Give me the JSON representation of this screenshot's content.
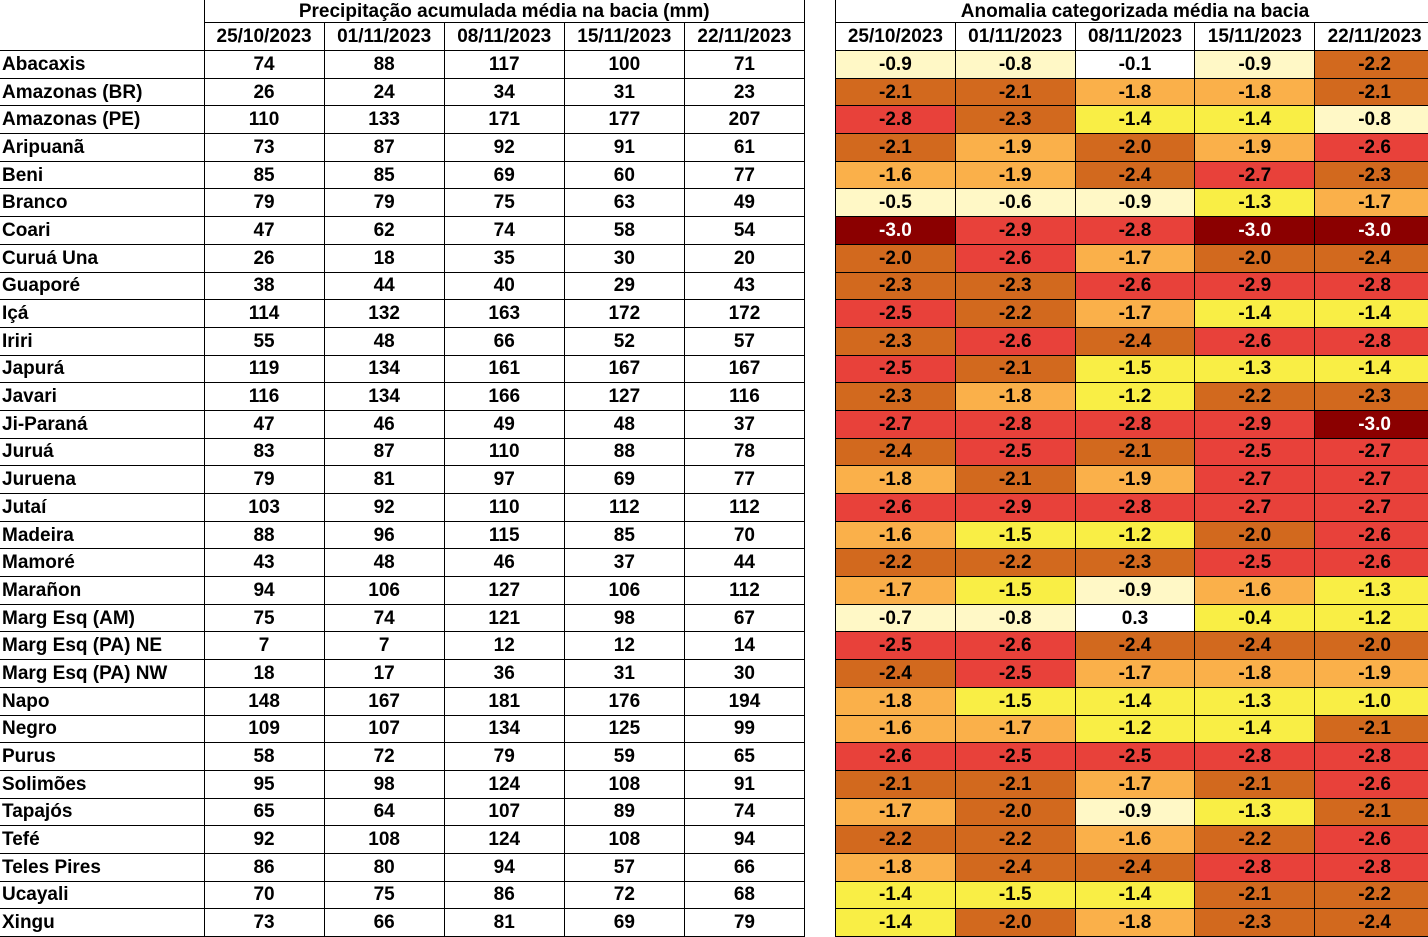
{
  "left_title": "Precipitação acumulada média na bacia (mm)",
  "right_title": "Anomalia categorizada média na bacia",
  "dates": [
    "25/10/2023",
    "01/11/2023",
    "08/11/2023",
    "15/11/2023",
    "22/11/2023"
  ],
  "colors": {
    "neg3": "#8b0000",
    "red": "#e8413a",
    "dark_orange": "#d2691e",
    "light_orange": "#fab04a",
    "yellow": "#f9ee45",
    "pale_yellow": "#fff8c6",
    "white": "#ffffff"
  },
  "rows": [
    {
      "basin": "Abacaxis",
      "precip": [
        "74",
        "88",
        "117",
        "100",
        "71"
      ],
      "anomaly": [
        "-0.9",
        "-0.8",
        "-0.1",
        "-0.9",
        "-2.2"
      ]
    },
    {
      "basin": "Amazonas (BR)",
      "precip": [
        "26",
        "24",
        "34",
        "31",
        "23"
      ],
      "anomaly": [
        "-2.1",
        "-2.1",
        "-1.8",
        "-1.8",
        "-2.1"
      ]
    },
    {
      "basin": "Amazonas (PE)",
      "precip": [
        "110",
        "133",
        "171",
        "177",
        "207"
      ],
      "anomaly": [
        "-2.8",
        "-2.3",
        "-1.4",
        "-1.4",
        "-0.8"
      ]
    },
    {
      "basin": "Aripuanã",
      "precip": [
        "73",
        "87",
        "92",
        "91",
        "61"
      ],
      "anomaly": [
        "-2.1",
        "-1.9",
        "-2.0",
        "-1.9",
        "-2.6"
      ]
    },
    {
      "basin": "Beni",
      "precip": [
        "85",
        "85",
        "69",
        "60",
        "77"
      ],
      "anomaly": [
        "-1.6",
        "-1.9",
        "-2.4",
        "-2.7",
        "-2.3"
      ]
    },
    {
      "basin": "Branco",
      "precip": [
        "79",
        "79",
        "75",
        "63",
        "49"
      ],
      "anomaly": [
        "-0.5",
        "-0.6",
        "-0.9",
        "-1.3",
        "-1.7"
      ]
    },
    {
      "basin": "Coari",
      "precip": [
        "47",
        "62",
        "74",
        "58",
        "54"
      ],
      "anomaly": [
        "-3.0",
        "-2.9",
        "-2.8",
        "-3.0",
        "-3.0"
      ]
    },
    {
      "basin": "Curuá Una",
      "precip": [
        "26",
        "18",
        "35",
        "30",
        "20"
      ],
      "anomaly": [
        "-2.0",
        "-2.6",
        "-1.7",
        "-2.0",
        "-2.4"
      ]
    },
    {
      "basin": "Guaporé",
      "precip": [
        "38",
        "44",
        "40",
        "29",
        "43"
      ],
      "anomaly": [
        "-2.3",
        "-2.3",
        "-2.6",
        "-2.9",
        "-2.8"
      ]
    },
    {
      "basin": "Içá",
      "precip": [
        "114",
        "132",
        "163",
        "172",
        "172"
      ],
      "anomaly": [
        "-2.5",
        "-2.2",
        "-1.7",
        "-1.4",
        "-1.4"
      ]
    },
    {
      "basin": "Iriri",
      "precip": [
        "55",
        "48",
        "66",
        "52",
        "57"
      ],
      "anomaly": [
        "-2.3",
        "-2.6",
        "-2.4",
        "-2.6",
        "-2.8"
      ]
    },
    {
      "basin": "Japurá",
      "precip": [
        "119",
        "134",
        "161",
        "167",
        "167"
      ],
      "anomaly": [
        "-2.5",
        "-2.1",
        "-1.5",
        "-1.3",
        "-1.4"
      ]
    },
    {
      "basin": "Javari",
      "precip": [
        "116",
        "134",
        "166",
        "127",
        "116"
      ],
      "anomaly": [
        "-2.3",
        "-1.8",
        "-1.2",
        "-2.2",
        "-2.3"
      ]
    },
    {
      "basin": "Ji-Paraná",
      "precip": [
        "47",
        "46",
        "49",
        "48",
        "37"
      ],
      "anomaly": [
        "-2.7",
        "-2.8",
        "-2.8",
        "-2.9",
        "-3.0"
      ]
    },
    {
      "basin": "Juruá",
      "precip": [
        "83",
        "87",
        "110",
        "88",
        "78"
      ],
      "anomaly": [
        "-2.4",
        "-2.5",
        "-2.1",
        "-2.5",
        "-2.7"
      ]
    },
    {
      "basin": "Juruena",
      "precip": [
        "79",
        "81",
        "97",
        "69",
        "77"
      ],
      "anomaly": [
        "-1.8",
        "-2.1",
        "-1.9",
        "-2.7",
        "-2.7"
      ]
    },
    {
      "basin": "Jutaí",
      "precip": [
        "103",
        "92",
        "110",
        "112",
        "112"
      ],
      "anomaly": [
        "-2.6",
        "-2.9",
        "-2.8",
        "-2.7",
        "-2.7"
      ]
    },
    {
      "basin": "Madeira",
      "precip": [
        "88",
        "96",
        "115",
        "85",
        "70"
      ],
      "anomaly": [
        "-1.6",
        "-1.5",
        "-1.2",
        "-2.0",
        "-2.6"
      ]
    },
    {
      "basin": "Mamoré",
      "precip": [
        "43",
        "48",
        "46",
        "37",
        "44"
      ],
      "anomaly": [
        "-2.2",
        "-2.2",
        "-2.3",
        "-2.5",
        "-2.6"
      ]
    },
    {
      "basin": "Marañon",
      "precip": [
        "94",
        "106",
        "127",
        "106",
        "112"
      ],
      "anomaly": [
        "-1.7",
        "-1.5",
        "-0.9",
        "-1.6",
        "-1.3"
      ]
    },
    {
      "basin": "Marg Esq (AM)",
      "precip": [
        "75",
        "74",
        "121",
        "98",
        "67"
      ],
      "anomaly": [
        "-0.7",
        "-0.8",
        "0.3",
        "-0.4",
        "-1.2"
      ]
    },
    {
      "basin": "Marg Esq (PA) NE",
      "precip": [
        "7",
        "7",
        "12",
        "12",
        "14"
      ],
      "anomaly": [
        "-2.5",
        "-2.6",
        "-2.4",
        "-2.4",
        "-2.0"
      ]
    },
    {
      "basin": "Marg Esq (PA) NW",
      "precip": [
        "18",
        "17",
        "36",
        "31",
        "30"
      ],
      "anomaly": [
        "-2.4",
        "-2.5",
        "-1.7",
        "-1.8",
        "-1.9"
      ]
    },
    {
      "basin": "Napo",
      "precip": [
        "148",
        "167",
        "181",
        "176",
        "194"
      ],
      "anomaly": [
        "-1.8",
        "-1.5",
        "-1.4",
        "-1.3",
        "-1.0"
      ]
    },
    {
      "basin": "Negro",
      "precip": [
        "109",
        "107",
        "134",
        "125",
        "99"
      ],
      "anomaly": [
        "-1.6",
        "-1.7",
        "-1.2",
        "-1.4",
        "-2.1"
      ]
    },
    {
      "basin": "Purus",
      "precip": [
        "58",
        "72",
        "79",
        "59",
        "65"
      ],
      "anomaly": [
        "-2.6",
        "-2.5",
        "-2.5",
        "-2.8",
        "-2.8"
      ]
    },
    {
      "basin": "Solimões",
      "precip": [
        "95",
        "98",
        "124",
        "108",
        "91"
      ],
      "anomaly": [
        "-2.1",
        "-2.1",
        "-1.7",
        "-2.1",
        "-2.6"
      ]
    },
    {
      "basin": "Tapajós",
      "precip": [
        "65",
        "64",
        "107",
        "89",
        "74"
      ],
      "anomaly": [
        "-1.7",
        "-2.0",
        "-0.9",
        "-1.3",
        "-2.1"
      ]
    },
    {
      "basin": "Tefé",
      "precip": [
        "92",
        "108",
        "124",
        "108",
        "94"
      ],
      "anomaly": [
        "-2.2",
        "-2.2",
        "-1.6",
        "-2.2",
        "-2.6"
      ]
    },
    {
      "basin": "Teles Pires",
      "precip": [
        "86",
        "80",
        "94",
        "57",
        "66"
      ],
      "anomaly": [
        "-1.8",
        "-2.4",
        "-2.4",
        "-2.8",
        "-2.8"
      ]
    },
    {
      "basin": "Ucayali",
      "precip": [
        "70",
        "75",
        "86",
        "72",
        "68"
      ],
      "anomaly": [
        "-1.4",
        "-1.5",
        "-1.4",
        "-2.1",
        "-2.2"
      ]
    },
    {
      "basin": "Xingu",
      "precip": [
        "73",
        "66",
        "81",
        "69",
        "79"
      ],
      "anomaly": [
        "-1.4",
        "-2.0",
        "-1.8",
        "-2.3",
        "-2.4"
      ]
    }
  ]
}
